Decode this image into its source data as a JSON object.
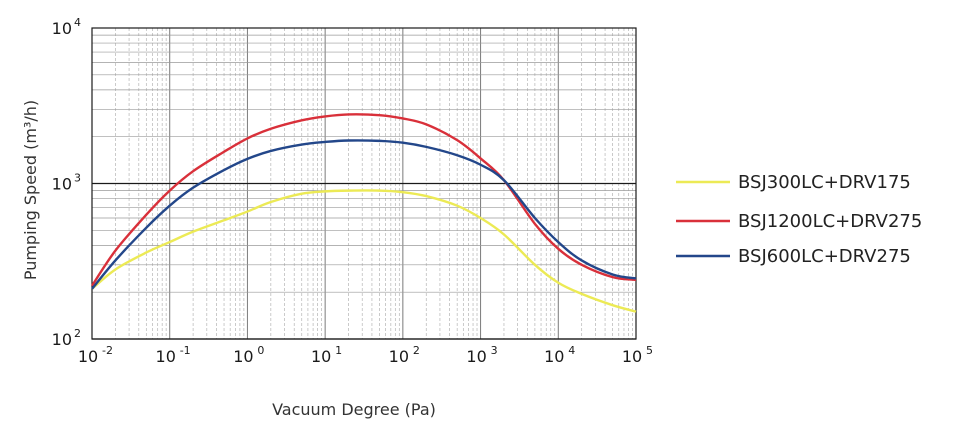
{
  "chart_data": {
    "type": "line",
    "title": "",
    "xlabel": "Vacuum Degree (Pa)",
    "ylabel": "Pumping Speed (m³/h)",
    "x_scale": "log",
    "y_scale": "log",
    "xlim": [
      0.01,
      100000
    ],
    "ylim": [
      100,
      10000
    ],
    "grid": true,
    "legend_position": "right",
    "x_ticks": [
      {
        "base": "10",
        "exp": "-2",
        "value": 0.01
      },
      {
        "base": "10",
        "exp": "-1",
        "value": 0.1
      },
      {
        "base": "10",
        "exp": "0",
        "value": 1
      },
      {
        "base": "10",
        "exp": "1",
        "value": 10
      },
      {
        "base": "10",
        "exp": "2",
        "value": 100
      },
      {
        "base": "10",
        "exp": "3",
        "value": 1000
      },
      {
        "base": "10",
        "exp": "4",
        "value": 10000
      },
      {
        "base": "10",
        "exp": "5",
        "value": 100000
      }
    ],
    "y_ticks": [
      {
        "base": "10",
        "exp": "2",
        "value": 100
      },
      {
        "base": "10",
        "exp": "3",
        "value": 1000
      },
      {
        "base": "10",
        "exp": "4",
        "value": 10000
      }
    ],
    "series": [
      {
        "name": "BSJ300LC+DRV175",
        "color": "#ecea55",
        "x": [
          0.01,
          0.02,
          0.05,
          0.1,
          0.2,
          0.5,
          1,
          2,
          5,
          10,
          20,
          50,
          100,
          200,
          500,
          1000,
          2000,
          5000,
          10000,
          20000,
          50000,
          100000
        ],
        "y": [
          210,
          280,
          360,
          420,
          490,
          580,
          660,
          760,
          860,
          890,
          900,
          900,
          880,
          830,
          720,
          600,
          470,
          300,
          230,
          195,
          165,
          150
        ]
      },
      {
        "name": "BSJ1200LC+DRV275",
        "color": "#d9303a",
        "x": [
          0.01,
          0.02,
          0.05,
          0.1,
          0.2,
          0.5,
          1,
          2,
          5,
          10,
          20,
          50,
          100,
          200,
          500,
          1000,
          2000,
          5000,
          10000,
          20000,
          50000,
          100000
        ],
        "y": [
          220,
          370,
          630,
          900,
          1200,
          1600,
          1950,
          2250,
          2550,
          2700,
          2780,
          2750,
          2620,
          2400,
          1900,
          1450,
          1050,
          550,
          380,
          300,
          250,
          240
        ]
      },
      {
        "name": "BSJ600LC+DRV275",
        "color": "#23478a",
        "x": [
          0.01,
          0.02,
          0.05,
          0.1,
          0.2,
          0.5,
          1,
          2,
          5,
          10,
          20,
          50,
          100,
          200,
          500,
          1000,
          2000,
          5000,
          10000,
          20000,
          50000,
          100000
        ],
        "y": [
          210,
          320,
          520,
          720,
          940,
          1220,
          1440,
          1620,
          1780,
          1850,
          1890,
          1880,
          1830,
          1720,
          1520,
          1320,
          1050,
          600,
          420,
          320,
          260,
          245
        ]
      }
    ]
  }
}
